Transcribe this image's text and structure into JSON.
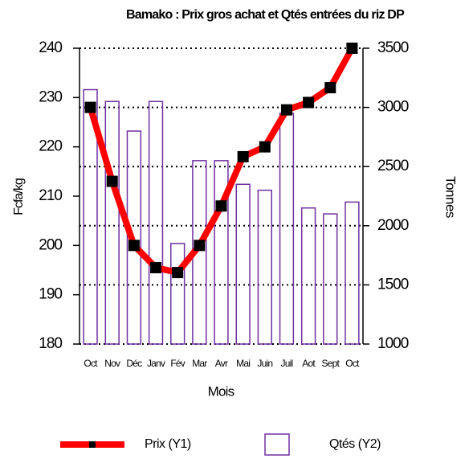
{
  "chart_data": {
    "type": "combo",
    "title": "Bamako : Prix  gros achat et Qtés entrées  du riz DP",
    "x_label": "Mois",
    "y_label": "Fcfa/kg",
    "y2_label": "Tonnes",
    "categories": [
      "Oct",
      "Nov",
      "Déc",
      "Janv",
      "Fév",
      "Mar",
      "Avr",
      "Mai",
      "Juin",
      "Juil",
      "Aot",
      "Sept",
      "Oct"
    ],
    "series": [
      {
        "name": "Qtés (Y2)",
        "type": "bar",
        "axis": "y2",
        "color": "#7030a0",
        "values": [
          3150,
          3050,
          2800,
          3050,
          1850,
          2550,
          2550,
          2350,
          2300,
          2950,
          2150,
          2100,
          2200
        ]
      },
      {
        "name": "Prix (Y1)",
        "type": "line",
        "axis": "y",
        "color": "#ff0000",
        "marker_color": "#000000",
        "values": [
          228,
          213,
          200,
          195.5,
          194.5,
          200,
          208,
          218,
          220,
          227.5,
          229,
          232,
          240
        ]
      }
    ],
    "ylim": [
      180,
      240
    ],
    "yticks": [
      180,
      190,
      200,
      210,
      220,
      230,
      240
    ],
    "y2lim": [
      1000,
      3500
    ],
    "y2ticks": [
      1000,
      1500,
      2000,
      2500,
      3000,
      3500
    ],
    "grid": "y2",
    "legend": "bottom"
  }
}
